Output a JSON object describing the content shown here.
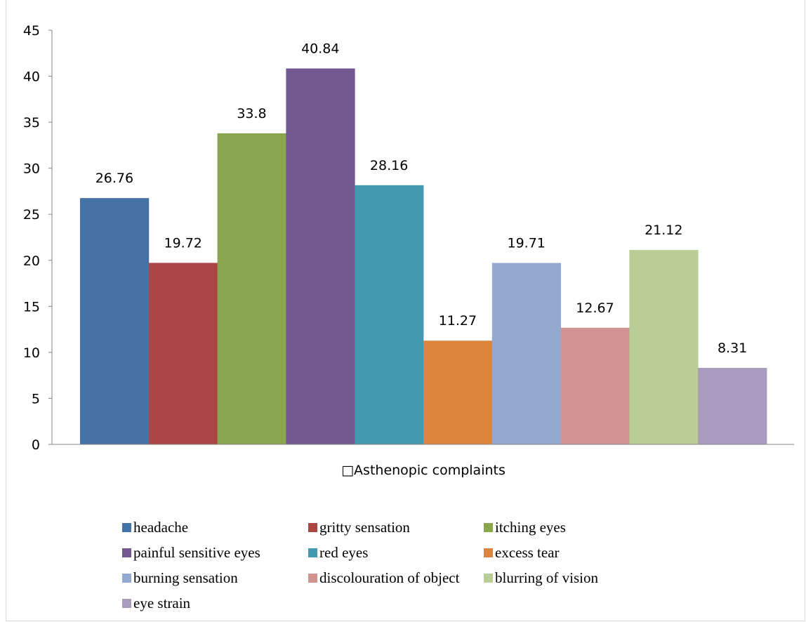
{
  "chart_data": {
    "type": "bar",
    "title": "",
    "xlabel": "\u0000Asthenopic complaints",
    "ylabel": "",
    "ylim": [
      0,
      45
    ],
    "yticks": [
      0,
      5,
      10,
      15,
      20,
      25,
      30,
      35,
      40,
      45
    ],
    "grid": false,
    "legend_position": "bottom",
    "series": [
      {
        "name": "headache",
        "value": 26.76,
        "label": "26.76",
        "color": "#4572a7"
      },
      {
        "name": "gritty sensation",
        "value": 19.72,
        "label": "19.72",
        "color": "#aa4643"
      },
      {
        "name": "itching eyes",
        "value": 33.8,
        "label": "33.8",
        "color": "#89a54e"
      },
      {
        "name": "painful sensitive eyes",
        "value": 40.84,
        "label": "40.84",
        "color": "#71588f"
      },
      {
        "name": "red eyes",
        "value": 28.16,
        "label": "28.16",
        "color": "#4198af"
      },
      {
        "name": "excess tear",
        "value": 11.27,
        "label": "11.27",
        "color": "#db843d"
      },
      {
        "name": "burning sensation",
        "value": 19.71,
        "label": "19.71",
        "color": "#93a9cf"
      },
      {
        "name": "discolouration of object",
        "value": 12.67,
        "label": "12.67",
        "color": "#d19392"
      },
      {
        "name": "blurring of vision",
        "value": 21.12,
        "label": "21.12",
        "color": "#b9cd96"
      },
      {
        "name": "eye strain",
        "value": 8.31,
        "label": "8.31",
        "color": "#a99bbd"
      }
    ]
  }
}
